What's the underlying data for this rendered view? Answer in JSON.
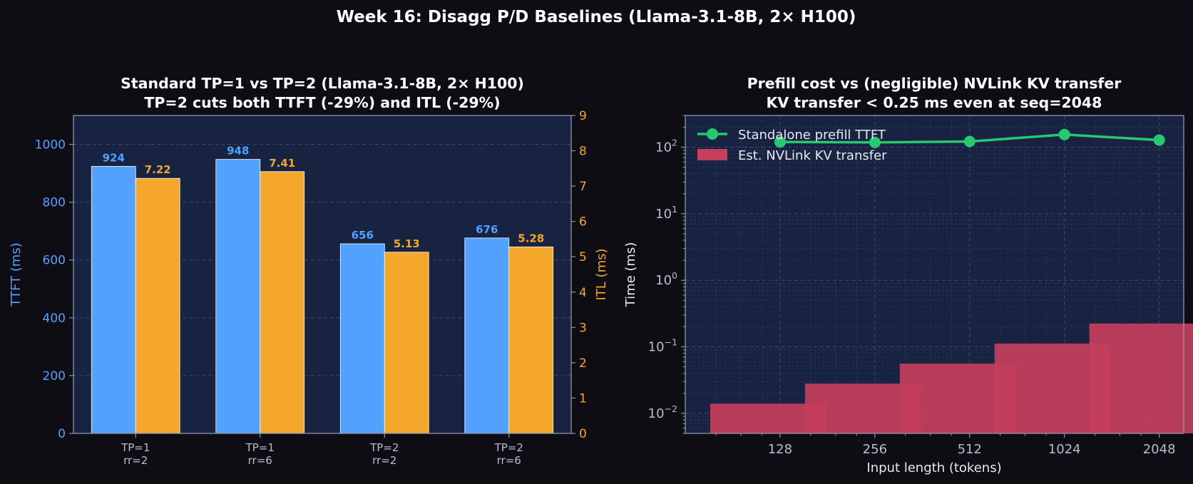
{
  "figure": {
    "suptitle": "Week 16: Disagg P/D Baselines (Llama-3.1-8B, 2× H100)"
  },
  "colors": {
    "background": "#0e0d13",
    "plot_bg": "#172340",
    "ttft": "#52a1ff",
    "itl": "#f4a72a",
    "prefill_line": "#26c96f",
    "kv_bar": "#c43f5c",
    "text": "#ffffff",
    "muted": "#b8bed0"
  },
  "chart_data": [
    {
      "type": "bar",
      "title_line1": "Standard TP=1 vs TP=2 (Llama-3.1-8B, 2× H100)",
      "title_line2": "TP=2 cuts both TTFT (-29%) and ITL (-29%)",
      "categories": [
        [
          "TP=1",
          "rr=2"
        ],
        [
          "TP=1",
          "rr=6"
        ],
        [
          "TP=2",
          "rr=2"
        ],
        [
          "TP=2",
          "rr=6"
        ]
      ],
      "ylabel_left": "TTFT (ms)",
      "ylabel_right": "ITL (ms)",
      "ylim_left": [
        0,
        1100
      ],
      "yticks_left": [
        0,
        200,
        400,
        600,
        800,
        1000
      ],
      "ylim_right": [
        0,
        9
      ],
      "yticks_right": [
        0,
        1,
        2,
        3,
        4,
        5,
        6,
        7,
        8,
        9
      ],
      "grid": true,
      "series": [
        {
          "name": "TTFT",
          "axis": "left",
          "values": [
            924,
            948,
            656,
            676
          ],
          "labels": [
            "924",
            "948",
            "656",
            "676"
          ]
        },
        {
          "name": "ITL",
          "axis": "right",
          "values": [
            7.22,
            7.41,
            5.13,
            5.28
          ],
          "labels": [
            "7.22",
            "7.41",
            "5.13",
            "5.28"
          ]
        }
      ]
    },
    {
      "type": "line",
      "title_line1": "Prefill cost vs (negligible) NVLink KV transfer",
      "title_line2": "KV transfer < 0.25 ms even at seq=2048",
      "xlabel": "Input length (tokens)",
      "ylabel": "Time (ms)",
      "xscale": "log2",
      "yscale": "log",
      "xlim": [
        64,
        2450
      ],
      "ylim": [
        0.005,
        300
      ],
      "x": [
        128,
        256,
        512,
        1024,
        2048
      ],
      "xtick_labels": [
        "128",
        "256",
        "512",
        "1024",
        "2048"
      ],
      "yticks": [
        0.01,
        0.1,
        1,
        10,
        100
      ],
      "ytick_labels": [
        {
          "base": "10",
          "exp": "−2"
        },
        {
          "base": "10",
          "exp": "−1"
        },
        {
          "base": "10",
          "exp": "0"
        },
        {
          "base": "10",
          "exp": "1"
        },
        {
          "base": "10",
          "exp": "2"
        }
      ],
      "legend_position": "upper-left",
      "grid": true,
      "series": [
        {
          "name": "Standalone prefill TTFT",
          "kind": "line",
          "values": [
            120,
            118,
            122,
            155,
            128
          ]
        },
        {
          "name": "Est. NVLink KV transfer",
          "kind": "bar",
          "values": [
            0.014,
            0.028,
            0.056,
            0.112,
            0.224
          ]
        }
      ]
    }
  ]
}
